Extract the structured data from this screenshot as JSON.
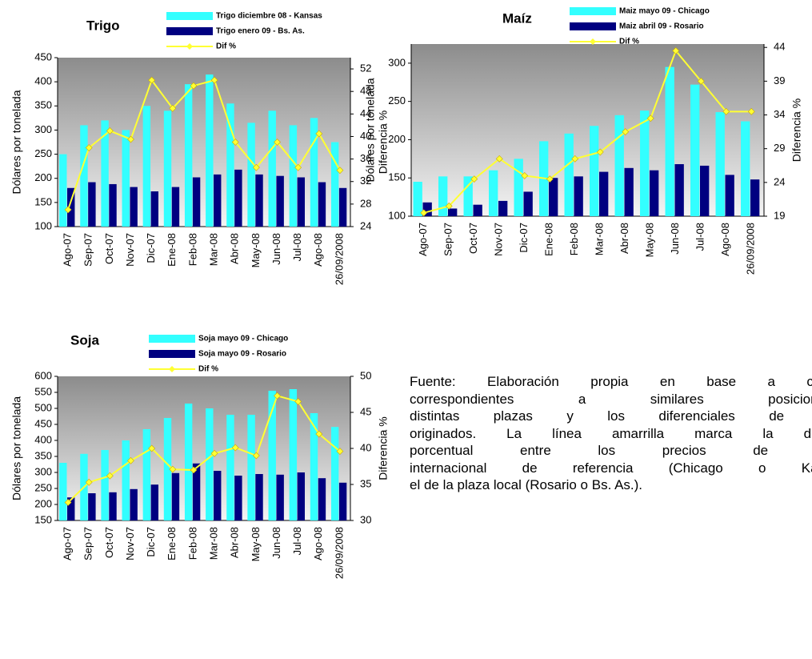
{
  "chart_data": [
    {
      "type": "bar-line",
      "title": "Trigo",
      "y_label": "Dólares por tonelada",
      "y2_label": "Diferencia %",
      "categories": [
        "Ago-07",
        "Sep-07",
        "Oct-07",
        "Nov-07",
        "Dic-07",
        "Ene-08",
        "Feb-08",
        "Mar-08",
        "Abr-08",
        "May-08",
        "Jun-08",
        "Jul-08",
        "Ago-08",
        "26/09/2008"
      ],
      "series": [
        {
          "name": "Trigo diciembre  08 - Kansas",
          "color": "#33ffff",
          "values": [
            250,
            310,
            320,
            300,
            350,
            340,
            395,
            415,
            355,
            315,
            340,
            310,
            325,
            275
          ]
        },
        {
          "name": "Trigo enero 09 - Bs. As.",
          "color": "#000080",
          "values": [
            180,
            192,
            188,
            182,
            173,
            182,
            202,
            208,
            218,
            208,
            205,
            202,
            192,
            180
          ]
        },
        {
          "name": "Dif %",
          "color": "#ffff33",
          "axis": "y2",
          "values": [
            27,
            38,
            41,
            39.5,
            50,
            45,
            49,
            50,
            39,
            34.5,
            39,
            34.5,
            40.5,
            34
          ]
        }
      ],
      "ylim": [
        100,
        450
      ],
      "yticks": [
        100,
        150,
        200,
        250,
        300,
        350,
        400,
        450
      ],
      "y2lim": [
        24,
        54
      ],
      "y2ticks": [
        24,
        28,
        32,
        36,
        40,
        44,
        48,
        52
      ]
    },
    {
      "type": "bar-line",
      "title": "Maíz",
      "y_label": "Dólares por tonelada",
      "y2_label": "Diferencia %",
      "categories": [
        "Ago-07",
        "Sep-07",
        "Oct-07",
        "Nov-07",
        "Dic-07",
        "Ene-08",
        "Feb-08",
        "Mar-08",
        "Abr-08",
        "May-08",
        "Jun-08",
        "Jul-08",
        "Ago-08",
        "26/09/2008"
      ],
      "series": [
        {
          "name": "Maiz mayo  09 - Chicago",
          "color": "#33ffff",
          "values": [
            145,
            152,
            152,
            160,
            175,
            198,
            208,
            218,
            232,
            238,
            295,
            272,
            236,
            224
          ]
        },
        {
          "name": "Maiz abril  09 - Rosario",
          "color": "#000080",
          "values": [
            118,
            110,
            115,
            120,
            132,
            150,
            152,
            158,
            163,
            160,
            168,
            166,
            154,
            148
          ]
        },
        {
          "name": "Dif %",
          "color": "#ffff33",
          "axis": "y2",
          "values": [
            19.5,
            20.5,
            24.5,
            27.5,
            25,
            24.5,
            27.5,
            28.5,
            31.5,
            33.5,
            43.5,
            39,
            34.5,
            34.5
          ]
        }
      ],
      "ylim": [
        100,
        325
      ],
      "yticks": [
        100,
        150,
        200,
        250,
        300
      ],
      "y2lim": [
        19,
        44.5
      ],
      "y2ticks": [
        19,
        24,
        29,
        34,
        39,
        44
      ]
    },
    {
      "type": "bar-line",
      "title": "Soja",
      "y_label": "Dólares por tonelada",
      "y2_label": "Diferencia %",
      "categories": [
        "Ago-07",
        "Sep-07",
        "Oct-07",
        "Nov-07",
        "Dic-07",
        "Ene-08",
        "Feb-08",
        "Mar-08",
        "Abr-08",
        "May-08",
        "Jun-08",
        "Jul-08",
        "Ago-08",
        "26/09/2008"
      ],
      "series": [
        {
          "name": "Soja mayo 09 - Chicago",
          "color": "#33ffff",
          "values": [
            330,
            358,
            370,
            400,
            435,
            470,
            515,
            500,
            480,
            480,
            555,
            560,
            485,
            442
          ]
        },
        {
          "name": "Soja mayo 09 - Rosario",
          "color": "#000080",
          "values": [
            222,
            235,
            238,
            248,
            262,
            298,
            328,
            305,
            290,
            295,
            293,
            300,
            282,
            268
          ]
        },
        {
          "name": "Dif %",
          "color": "#ffff33",
          "axis": "y2",
          "values": [
            32.5,
            35.3,
            36.2,
            38.3,
            40,
            37.1,
            37,
            39.3,
            40.1,
            39,
            47.3,
            46.5,
            42,
            39.6
          ]
        }
      ],
      "ylim": [
        150,
        600
      ],
      "yticks": [
        150,
        200,
        250,
        300,
        350,
        400,
        450,
        500,
        550,
        600
      ],
      "y2lim": [
        30,
        50
      ],
      "y2ticks": [
        30,
        35,
        40,
        45,
        50
      ]
    }
  ],
  "note": {
    "lines": [
      "Fuente: Elaboración propia en base a cor",
      "correspondientes a similares posicione",
      "distintas plazas y los diferenciales de p",
      "originados. La línea amarrilla marca la dife",
      "porcentual entre los precios de la",
      "internacional de referencia (Chicago o Kan",
      "el de la plaza local (Rosario o Bs. As.)."
    ]
  }
}
